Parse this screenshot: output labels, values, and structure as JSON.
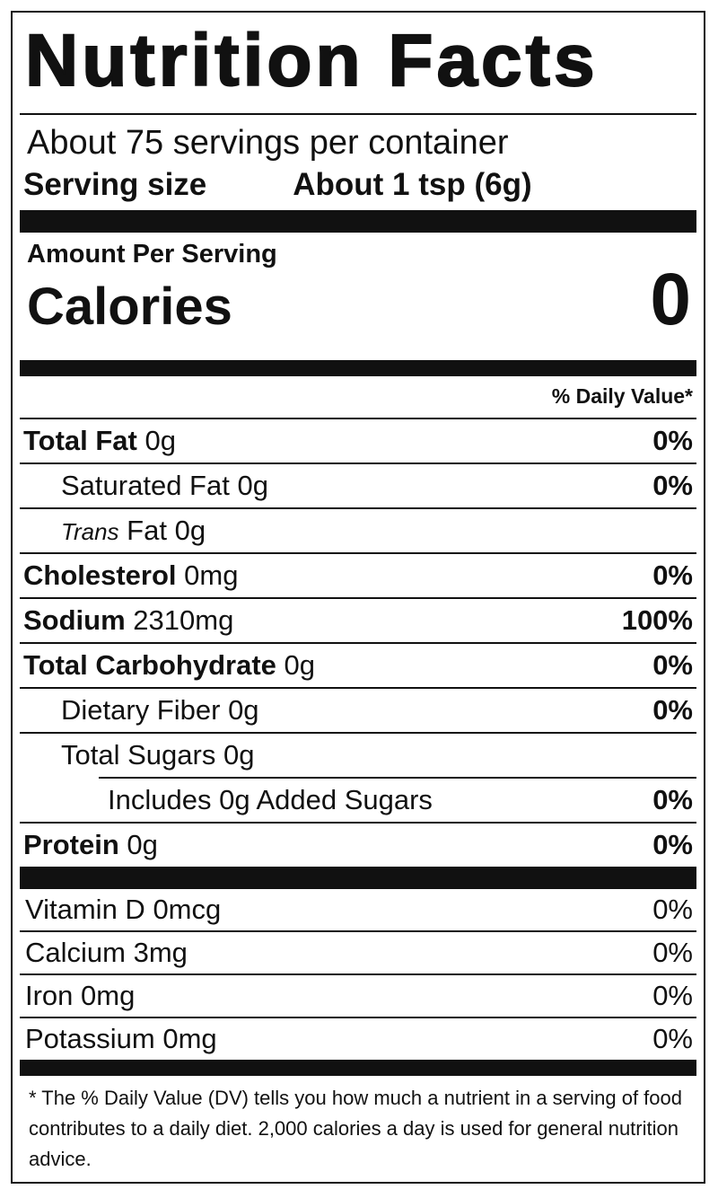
{
  "title": "Nutrition Facts",
  "servings": "About 75 servings per container",
  "serving_size": {
    "label": "Serving size",
    "value": "About 1 tsp (6g)"
  },
  "amount_per_serving": "Amount Per Serving",
  "calories": {
    "label": "Calories",
    "value": "0"
  },
  "dv_header": "% Daily Value*",
  "nutrients": [
    {
      "name": "Total Fat",
      "amount": "0g",
      "dv": "0%",
      "indent": 0
    },
    {
      "name": "Saturated Fat",
      "amount": "0g",
      "dv": "0%",
      "indent": 1
    },
    {
      "italic": "Trans",
      "name": "Fat",
      "amount": "0g",
      "indent": 1
    },
    {
      "name": "Cholesterol",
      "amount": "0mg",
      "dv": "0%",
      "indent": 0
    },
    {
      "name": "Sodium",
      "amount": "2310mg",
      "dv": "100%",
      "indent": 0
    },
    {
      "name": "Total Carbohydrate",
      "amount": "0g",
      "dv": "0%",
      "indent": 0
    },
    {
      "name": "Dietary Fiber",
      "amount": "0g",
      "dv": "0%",
      "indent": 1
    },
    {
      "name": "Total Sugars",
      "amount": "0g",
      "indent": 1
    },
    {
      "name": "Includes 0g Added Sugars",
      "dv": "0%",
      "indent": 2
    },
    {
      "name": "Protein",
      "amount": "0g",
      "dv": "0%",
      "indent": 0
    }
  ],
  "vitamins": [
    {
      "name": "Vitamin D",
      "amount": "0mcg",
      "dv": "0%"
    },
    {
      "name": "Calcium",
      "amount": "3mg",
      "dv": "0%"
    },
    {
      "name": "Iron",
      "amount": "0mg",
      "dv": "0%"
    },
    {
      "name": "Potassium",
      "amount": "0mg",
      "dv": "0%"
    }
  ],
  "footnote": "* The % Daily Value (DV) tells you how much a nutrient in a serving of food contributes to a daily diet. 2,000 calories a day is used for general nutrition advice."
}
